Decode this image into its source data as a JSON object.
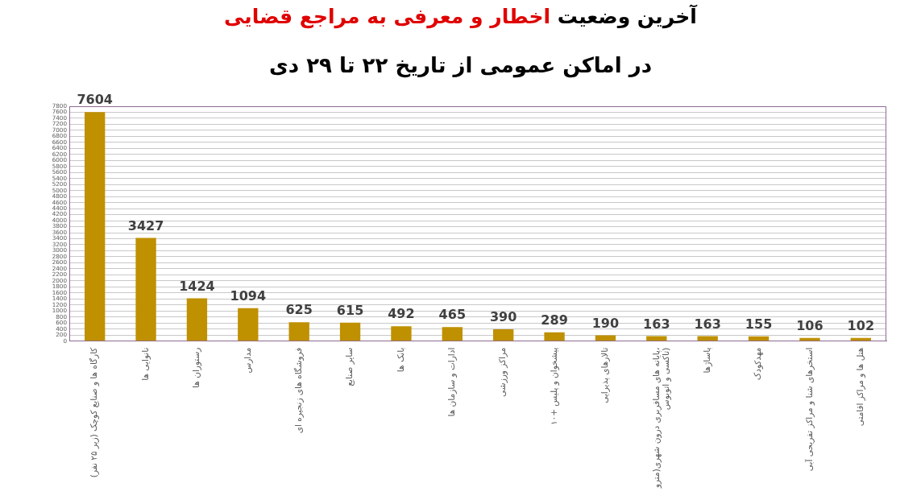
{
  "chart_data": {
    "type": "bar",
    "title": "آخرین وضعیت اخطار و معرفی به مراجع قضایی",
    "subtitle": "در اماکن عمومی از تاریخ ۲۲ تا ۲۹ دی",
    "categories": [
      "کارگاه ها و صنایع کوچک (زیر ۲۵ نفر)",
      "نانوایی ها",
      "رستوران ها",
      "مدارس",
      "فروشگاه های زنجیره ای",
      "سایر صنایع",
      "بانک ها",
      "ادارات و سازمان ها",
      "مراکز ورزشی",
      "پیشخوان و پلیس +۱۰",
      "تالارهای پذیرایی",
      "پایانه های مسافربری درون شهری(مترو، تاکسی و اتوبوس)",
      "پاساژها",
      "مهدکودک",
      "استخرهای شنا و مراکز تفریحی آبی",
      "هتل ها و مراکز اقامتی"
    ],
    "values": [
      7604,
      3427,
      1424,
      1094,
      625,
      615,
      492,
      465,
      390,
      289,
      190,
      163,
      163,
      155,
      106,
      102
    ],
    "color": "#bf9000",
    "ylim": [
      0,
      7800
    ],
    "yticks": [
      0,
      200,
      400,
      600,
      800,
      1000,
      1200,
      1400,
      1600,
      1800,
      2000,
      2200,
      2400,
      2600,
      2800,
      3000,
      3200,
      3400,
      3600,
      3800,
      4000,
      4200,
      4400,
      4600,
      4800,
      5000,
      5200,
      5400,
      5600,
      5800,
      6000,
      6200,
      6400,
      6600,
      6800,
      7000,
      7200,
      7400,
      7600,
      7800
    ],
    "grid": "y",
    "data_labels": true
  }
}
